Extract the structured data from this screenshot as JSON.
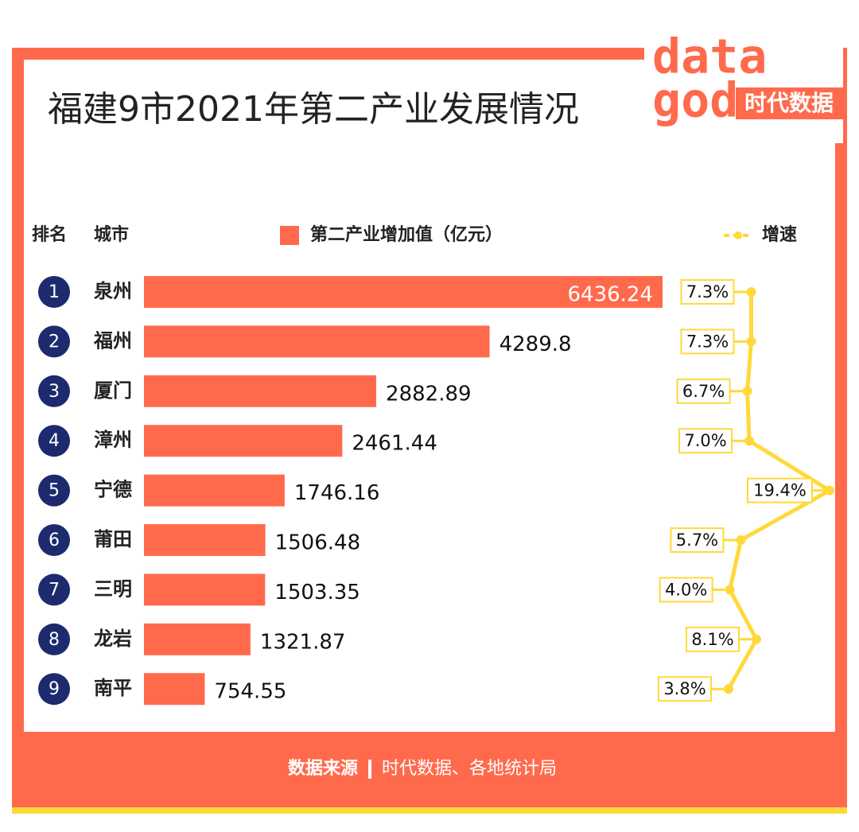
{
  "chart_data": {
    "type": "bar",
    "title": "福建9市2021年第二产业发展情况",
    "logo": [
      "data",
      "god",
      "时代数据"
    ],
    "rank_header": "排名",
    "city_header": "城市",
    "ranks": [
      "1",
      "2",
      "3",
      "4",
      "5",
      "6",
      "7",
      "8",
      "9"
    ],
    "categories": [
      "泉州",
      "福州",
      "厦门",
      "漳州",
      "宁德",
      "莆田",
      "三明",
      "龙岩",
      "南平"
    ],
    "series": [
      {
        "name": "第二产业增加值（亿元）",
        "color": "#ff6a4d",
        "type": "bar",
        "values": [
          6436.24,
          4289.8,
          2882.89,
          2461.44,
          1746.16,
          1506.48,
          1503.35,
          1321.87,
          754.55
        ]
      },
      {
        "name": "增速",
        "color": "#ffd93b",
        "type": "line",
        "values": [
          7.3,
          7.3,
          6.7,
          7.0,
          19.4,
          5.7,
          4.0,
          8.1,
          3.8
        ],
        "value_labels": [
          "7.3%",
          "7.3%",
          "6.7%",
          "7.0%",
          "19.4%",
          "5.7%",
          "4.0%",
          "8.1%",
          "3.8%"
        ]
      }
    ],
    "source_label": "数据来源",
    "source": "时代数据、各地统计局"
  }
}
